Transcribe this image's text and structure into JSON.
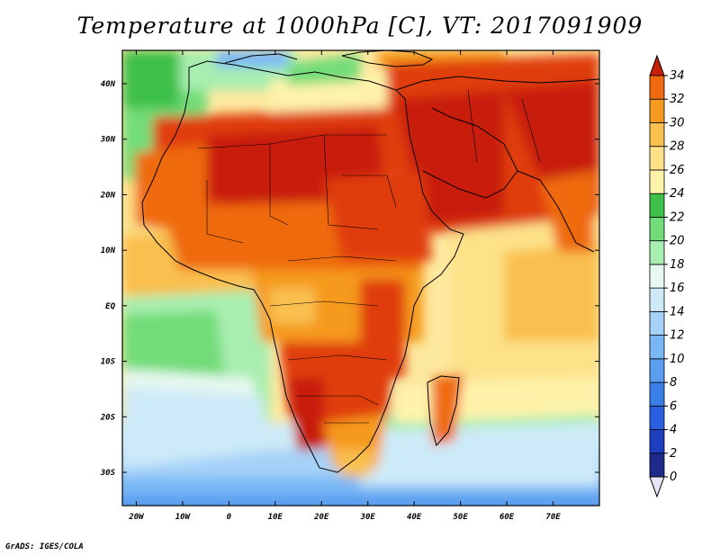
{
  "title": "Temperature at 1000hPa [C], VT: 2017091909",
  "credit": "GrADS: IGES/COLA",
  "map": {
    "lon_range": [
      -23,
      80
    ],
    "lat_range": [
      -36,
      46
    ],
    "lon_ticks": [
      {
        "value": -20,
        "label": "20W"
      },
      {
        "value": -10,
        "label": "10W"
      },
      {
        "value": 0,
        "label": "0"
      },
      {
        "value": 10,
        "label": "10E"
      },
      {
        "value": 20,
        "label": "20E"
      },
      {
        "value": 30,
        "label": "30E"
      },
      {
        "value": 40,
        "label": "40E"
      },
      {
        "value": 50,
        "label": "50E"
      },
      {
        "value": 60,
        "label": "60E"
      },
      {
        "value": 70,
        "label": "70E"
      }
    ],
    "lat_ticks": [
      {
        "value": 40,
        "label": "40N"
      },
      {
        "value": 30,
        "label": "30N"
      },
      {
        "value": 20,
        "label": "20N"
      },
      {
        "value": 10,
        "label": "10N"
      },
      {
        "value": 0,
        "label": "EQ"
      },
      {
        "value": -10,
        "label": "10S"
      },
      {
        "value": -20,
        "label": "20S"
      },
      {
        "value": -30,
        "label": "30S"
      }
    ]
  },
  "colorbar": {
    "levels": [
      "0",
      "2",
      "4",
      "6",
      "8",
      "10",
      "12",
      "14",
      "16",
      "18",
      "20",
      "22",
      "24",
      "26",
      "28",
      "30",
      "32",
      "34"
    ],
    "colors": [
      "#1e2a8a",
      "#1e3fc0",
      "#2a5ee0",
      "#3a7ee8",
      "#5a9ef0",
      "#7ab8f5",
      "#a6d2f8",
      "#cdeaf8",
      "#e6f8f0",
      "#a8eeb0",
      "#72dc78",
      "#3ec04a",
      "#fff3aa",
      "#fde28a",
      "#f9c050",
      "#f59a1e",
      "#ef6a10",
      "#e03c0c",
      "#c81e0a"
    ],
    "below_color": "#e6e6fa"
  }
}
